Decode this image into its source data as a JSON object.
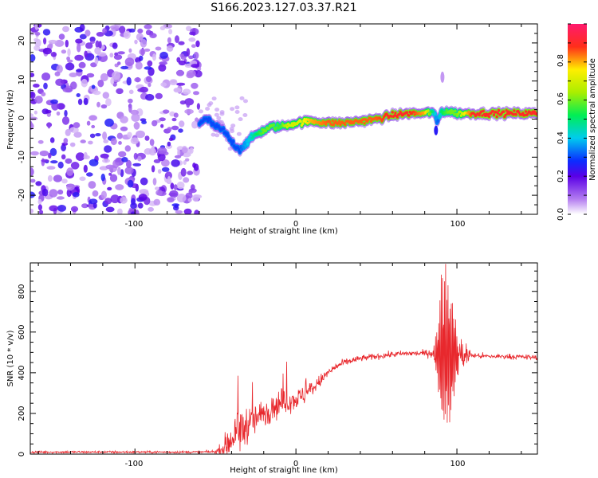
{
  "title": "S166.2023.127.03.37.R21",
  "spectrogram": {
    "ylabel": "Frequency (Hz)",
    "xlabel": "Height of straight line (km)",
    "xticks": [
      "-100",
      "0",
      "100"
    ],
    "yticks": [
      "-20",
      "-10",
      "0",
      "10",
      "20"
    ],
    "colorbar_label": "Normalized spectral amplitude",
    "colorbar_ticks": [
      "0.0",
      "0.2",
      "0.4",
      "0.6",
      "0.8"
    ]
  },
  "chart_data": [
    {
      "type": "heatmap",
      "description": "Spectrogram: frequency vs height of straight line, coloured by normalized spectral amplitude",
      "xlabel": "Height of straight line (km)",
      "ylabel": "Frequency (Hz)",
      "xlim": [
        -165,
        150
      ],
      "ylim": [
        -25,
        25
      ],
      "x_ticks": [
        -100,
        0,
        100
      ],
      "y_ticks": [
        -20,
        -10,
        0,
        10,
        20
      ],
      "colorbar": {
        "label": "Normalized spectral amplitude",
        "range": [
          0,
          1
        ],
        "ticks": [
          0.0,
          0.2,
          0.4,
          0.6,
          0.8
        ]
      },
      "noise_region_x": [
        -165,
        -60
      ],
      "ridge": {
        "x": [
          -60,
          -55,
          -50,
          -45,
          -40,
          -35,
          -30,
          -25,
          -20,
          -15,
          -10,
          -5,
          0,
          10,
          20,
          30,
          40,
          50,
          60,
          70,
          80,
          85,
          88,
          90,
          95,
          100,
          110,
          120,
          130,
          140,
          150
        ],
        "freq": [
          -1,
          0,
          -2,
          -3,
          -6,
          -8,
          -6,
          -4,
          -3,
          -2,
          -2,
          -1.5,
          -1,
          -0.5,
          -1,
          -1,
          -0.5,
          0,
          1,
          1.5,
          1.5,
          2,
          -1,
          2,
          2,
          1.5,
          1.5,
          1.5,
          1.5,
          1.5,
          1.5
        ],
        "amplitude": [
          0.3,
          0.3,
          0.3,
          0.3,
          0.3,
          0.3,
          0.4,
          0.5,
          0.6,
          0.6,
          0.55,
          0.7,
          0.7,
          0.8,
          0.85,
          0.85,
          0.85,
          0.85,
          0.9,
          0.9,
          0.8,
          0.5,
          0.3,
          0.5,
          0.6,
          0.6,
          0.9,
          0.9,
          0.9,
          0.9,
          0.9
        ]
      }
    },
    {
      "type": "line",
      "xlabel": "Height of straight line (km)",
      "ylabel": "SNR (10 * v/v)",
      "xlim": [
        -165,
        150
      ],
      "ylim": [
        0,
        940
      ],
      "x_ticks": [
        -100,
        0,
        100
      ],
      "y_ticks": [
        0,
        200,
        400,
        600,
        800
      ],
      "color": "#e8282d",
      "envelope": {
        "x": [
          -165,
          -110,
          -60,
          -50,
          -45,
          -40,
          -35,
          -30,
          -25,
          -20,
          -15,
          -10,
          -5,
          0,
          5,
          10,
          15,
          20,
          25,
          30,
          40,
          50,
          60,
          70,
          80,
          85,
          88,
          90,
          92,
          95,
          97,
          100,
          110,
          120,
          130,
          140,
          150
        ],
        "mean": [
          10,
          10,
          10,
          12,
          30,
          80,
          110,
          150,
          170,
          200,
          230,
          250,
          260,
          270,
          290,
          320,
          360,
          400,
          430,
          450,
          470,
          480,
          490,
          495,
          495,
          500,
          480,
          500,
          500,
          490,
          480,
          490,
          485,
          480,
          480,
          478,
          475
        ],
        "noise": [
          6,
          6,
          6,
          8,
          40,
          120,
          120,
          90,
          80,
          70,
          70,
          70,
          60,
          50,
          50,
          40,
          30,
          25,
          20,
          18,
          15,
          15,
          15,
          15,
          15,
          30,
          150,
          420,
          440,
          420,
          380,
          120,
          15,
          12,
          12,
          12,
          12
        ]
      }
    }
  ]
}
